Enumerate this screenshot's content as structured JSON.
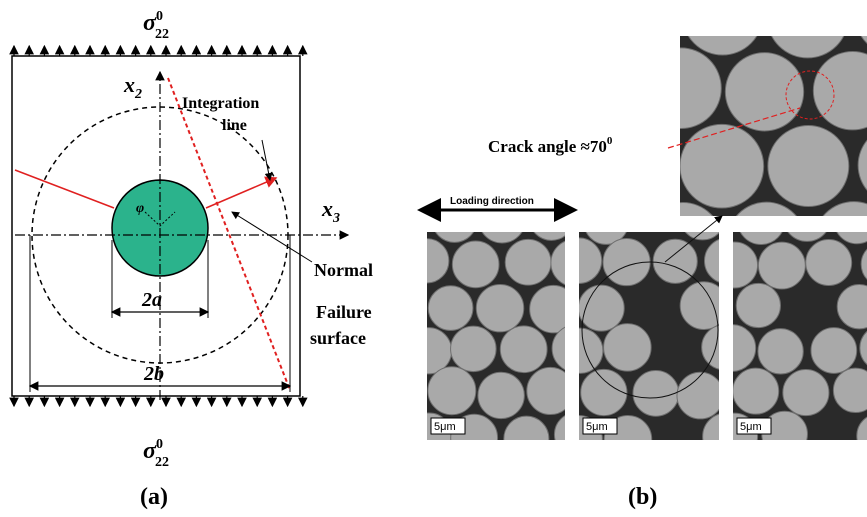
{
  "panel_a": {
    "sigma_top": {
      "symbol": "σ",
      "sup": "0",
      "sub": "22"
    },
    "sigma_bottom": {
      "symbol": "σ",
      "sup": "0",
      "sub": "22"
    },
    "axis_x2": {
      "symbol": "x",
      "sub": "2"
    },
    "axis_x3": {
      "symbol": "x",
      "sub": "3"
    },
    "integration_line": [
      "Integration",
      "line"
    ],
    "angle": "φ",
    "normal": "Normal",
    "failure_surface": [
      "Failure",
      "surface"
    ],
    "dim_2a": "2a",
    "dim_2b": "2b",
    "caption": "(a)"
  },
  "panel_b": {
    "crack_angle": {
      "text": "Crack angle ≈70",
      "sup": "0"
    },
    "loading_direction": "Loading direction",
    "scale_bars": [
      "5μm",
      "5μm",
      "5μm"
    ],
    "caption": "(b)"
  }
}
